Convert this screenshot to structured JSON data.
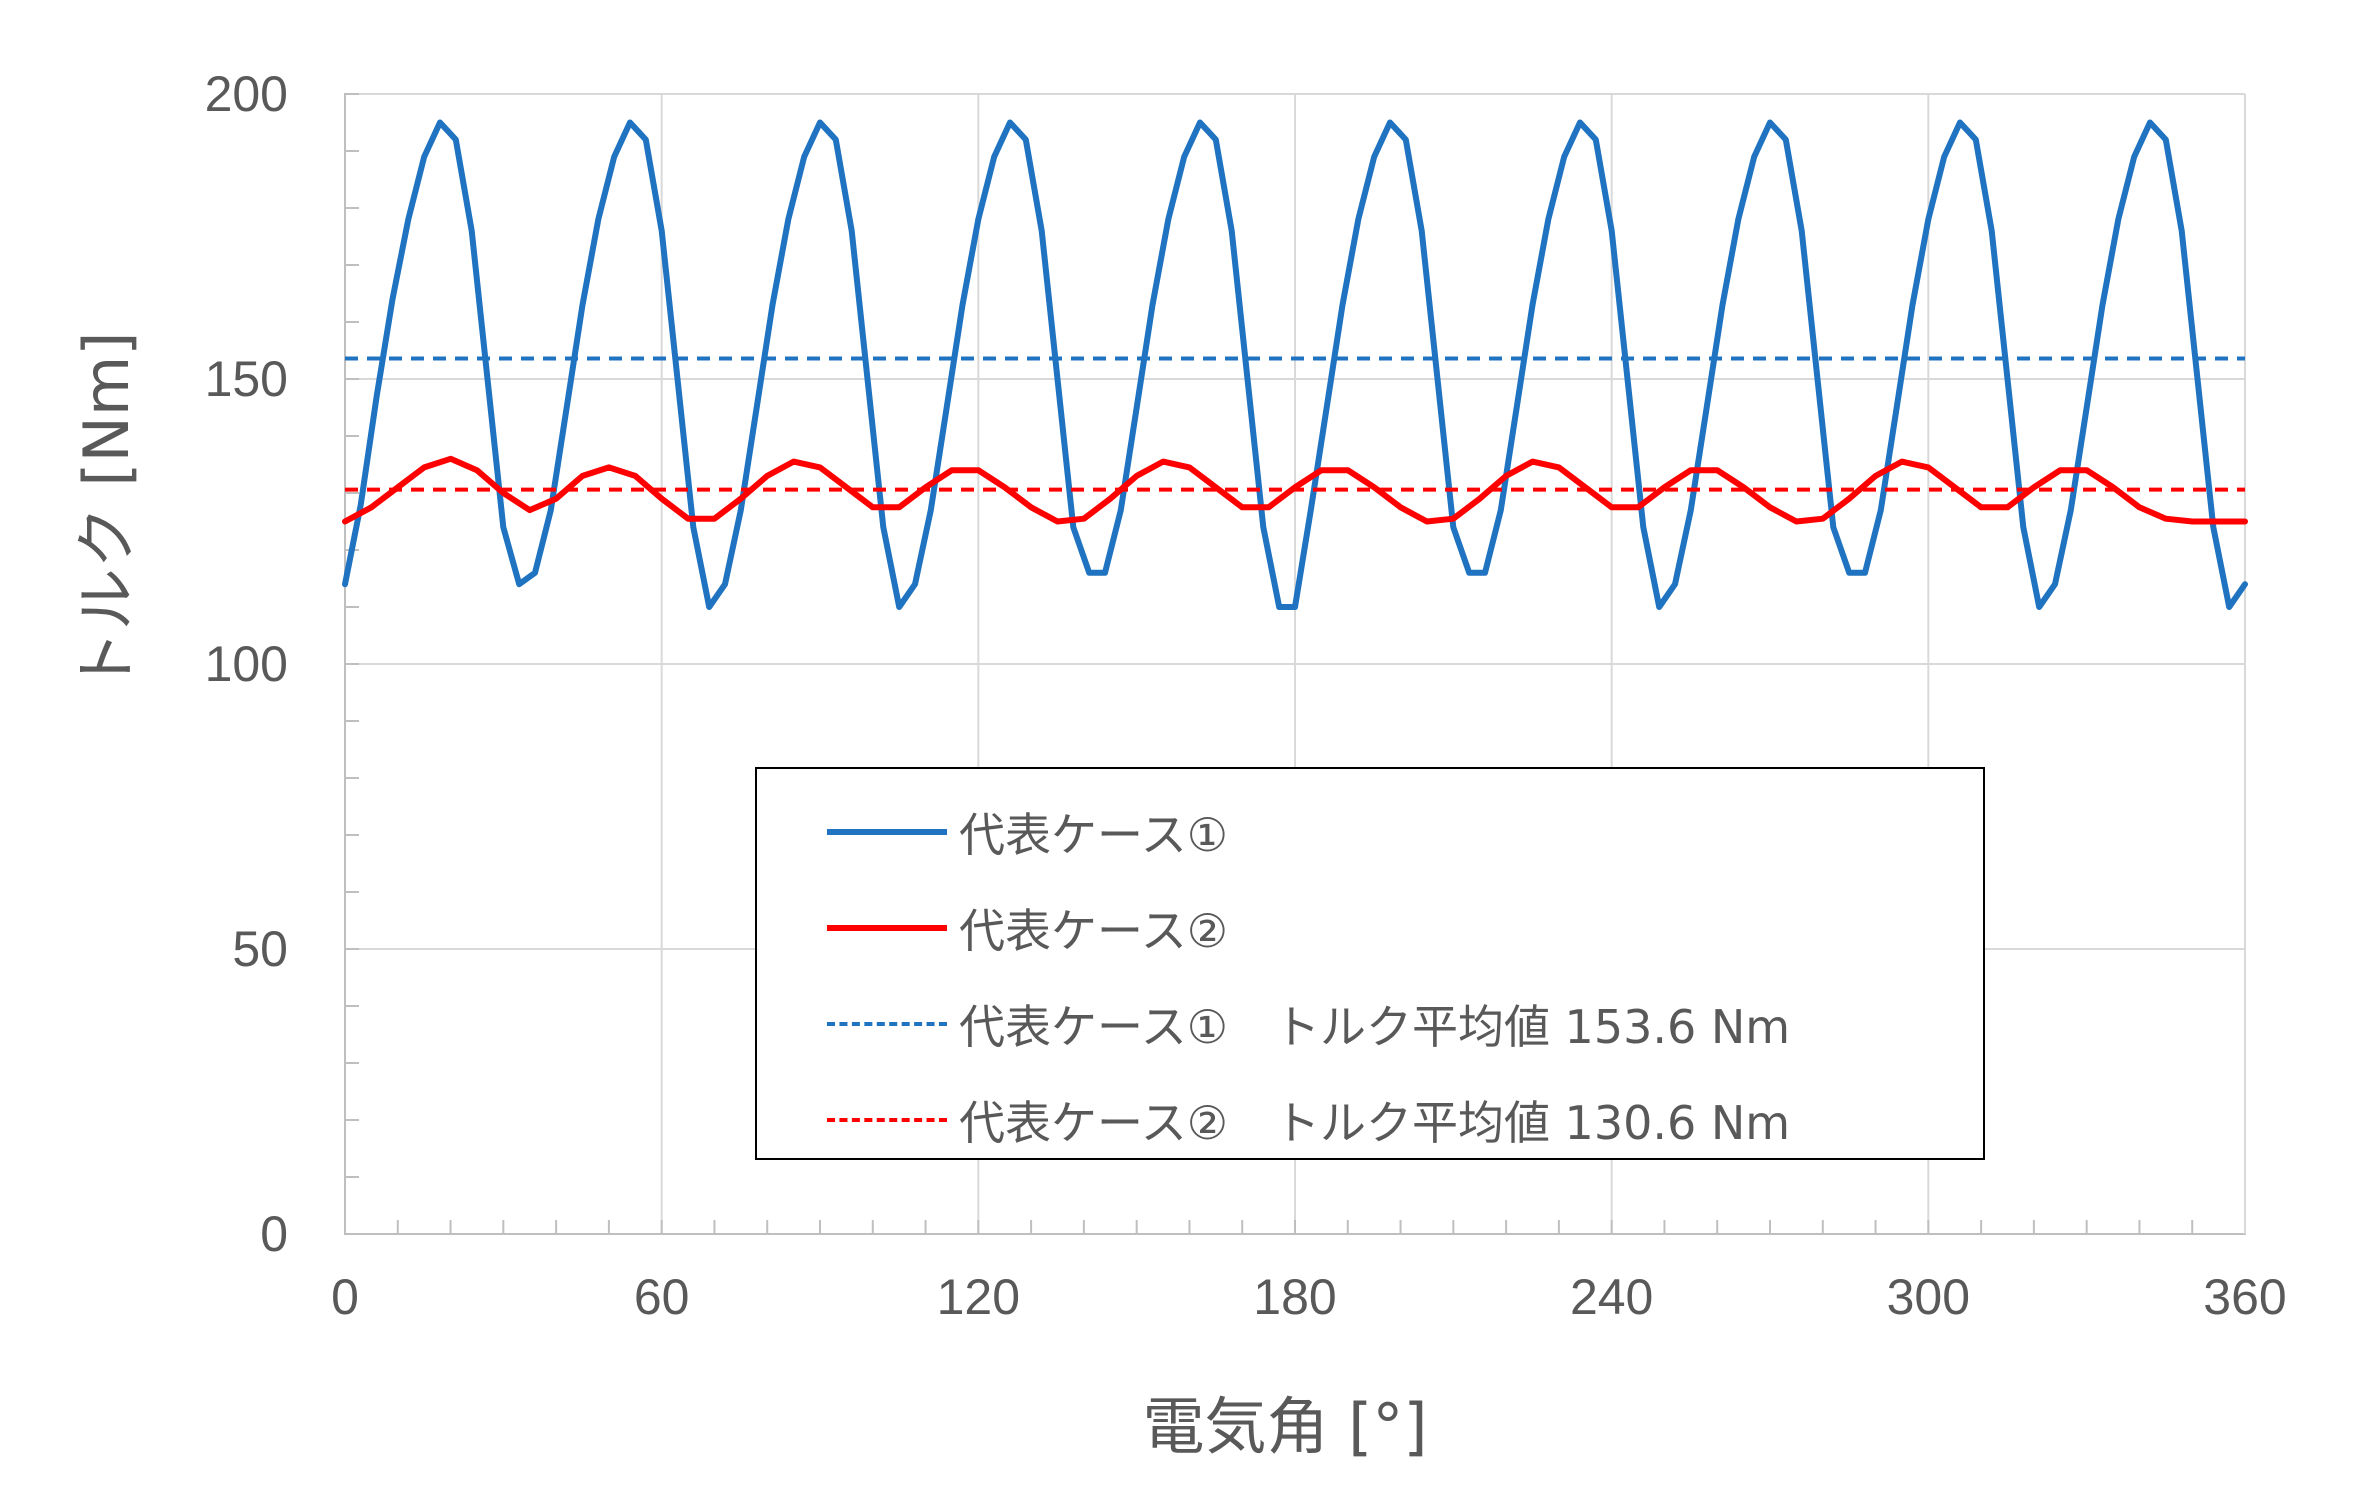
{
  "chart_data": {
    "type": "line",
    "xlabel": "電気角 [°]",
    "ylabel": "トルク [Nm]",
    "xlim": [
      0,
      360
    ],
    "ylim": [
      0,
      200
    ],
    "x_ticks": [
      "0",
      "60",
      "120",
      "180",
      "240",
      "300",
      "360"
    ],
    "y_ticks": [
      "0",
      "50",
      "100",
      "150",
      "200"
    ],
    "grid": true,
    "legend_position": "center",
    "series": [
      {
        "name": "代表ケース①",
        "style": "solid",
        "color": "#1f73c0",
        "x": [
          0,
          3,
          6,
          9,
          12,
          15,
          18,
          21,
          24,
          27,
          30,
          33,
          36,
          39,
          42,
          45,
          48,
          51,
          54,
          57,
          60,
          63,
          66,
          69,
          72,
          75,
          78,
          81,
          84,
          87,
          90,
          93,
          96,
          99,
          102,
          105,
          108,
          111,
          114,
          117,
          120,
          123,
          126,
          129,
          132,
          135,
          138,
          141,
          144,
          147,
          150,
          153,
          156,
          159,
          162,
          165,
          168,
          171,
          174,
          177,
          180,
          183,
          186,
          189,
          192,
          195,
          198,
          201,
          204,
          207,
          210,
          213,
          216,
          219,
          222,
          225,
          228,
          231,
          234,
          237,
          240,
          243,
          246,
          249,
          252,
          255,
          258,
          261,
          264,
          267,
          270,
          273,
          276,
          279,
          282,
          285,
          288,
          291,
          294,
          297,
          300,
          303,
          306,
          309,
          312,
          315,
          318,
          321,
          324,
          327,
          330,
          333,
          336,
          339,
          342,
          345,
          348,
          351,
          354,
          357,
          360
        ],
        "y": [
          114,
          128,
          147,
          164,
          178,
          189,
          195,
          192,
          176,
          150,
          124,
          114,
          116,
          127,
          145,
          163,
          178,
          189,
          195,
          192,
          176,
          150,
          124,
          110,
          114,
          127,
          145,
          163,
          178,
          189,
          195,
          192,
          176,
          150,
          124,
          110,
          114,
          127,
          145,
          163,
          178,
          189,
          195,
          192,
          176,
          150,
          124,
          116,
          116,
          127,
          145,
          163,
          178,
          189,
          195,
          192,
          176,
          150,
          124,
          110,
          110,
          127,
          145,
          163,
          178,
          189,
          195,
          192,
          176,
          150,
          124,
          116,
          116,
          127,
          145,
          163,
          178,
          189,
          195,
          192,
          176,
          150,
          124,
          110,
          114,
          127,
          145,
          163,
          178,
          189,
          195,
          192,
          176,
          150,
          124,
          116,
          116,
          127,
          145,
          163,
          178,
          189,
          195,
          192,
          176,
          150,
          124,
          110,
          114,
          127,
          145,
          163,
          178,
          189,
          195,
          192,
          176,
          150,
          124,
          110,
          114
        ]
      },
      {
        "name": "代表ケース②",
        "style": "solid",
        "color": "#ff0000",
        "x": [
          0,
          5,
          10,
          15,
          20,
          25,
          30,
          35,
          40,
          45,
          50,
          55,
          60,
          65,
          70,
          75,
          80,
          85,
          90,
          95,
          100,
          105,
          110,
          115,
          120,
          125,
          130,
          135,
          140,
          145,
          150,
          155,
          160,
          165,
          170,
          175,
          180,
          185,
          190,
          195,
          200,
          205,
          210,
          215,
          220,
          225,
          230,
          235,
          240,
          245,
          250,
          255,
          260,
          265,
          270,
          275,
          280,
          285,
          290,
          295,
          300,
          305,
          310,
          315,
          320,
          325,
          330,
          335,
          340,
          345,
          350,
          355,
          360
        ],
        "y": [
          125,
          127.5,
          131,
          134.5,
          136,
          134,
          130,
          127,
          129,
          133,
          134.5,
          133,
          129,
          125.5,
          125.5,
          129,
          133,
          135.5,
          134.5,
          131,
          127.5,
          127.5,
          131,
          134,
          134,
          131,
          127.5,
          125,
          125.5,
          129,
          133,
          135.5,
          134.5,
          131,
          127.5,
          127.5,
          131,
          134,
          134,
          131,
          127.5,
          125,
          125.5,
          129,
          133,
          135.5,
          134.5,
          131,
          127.5,
          127.5,
          131,
          134,
          134,
          131,
          127.5,
          125,
          125.5,
          129,
          133,
          135.5,
          134.5,
          131,
          127.5,
          127.5,
          131,
          134,
          134,
          131,
          127.5,
          125.5,
          125,
          125,
          125
        ]
      },
      {
        "name": "代表ケース①　トルク平均値 153.6 Nm",
        "style": "dashed",
        "color": "#1f73c0",
        "x": [
          0,
          360
        ],
        "y": [
          153.6,
          153.6
        ]
      },
      {
        "name": "代表ケース②　トルク平均値 130.6 Nm",
        "style": "dashed",
        "color": "#ff0000",
        "x": [
          0,
          360
        ],
        "y": [
          130.6,
          130.6
        ]
      }
    ]
  }
}
